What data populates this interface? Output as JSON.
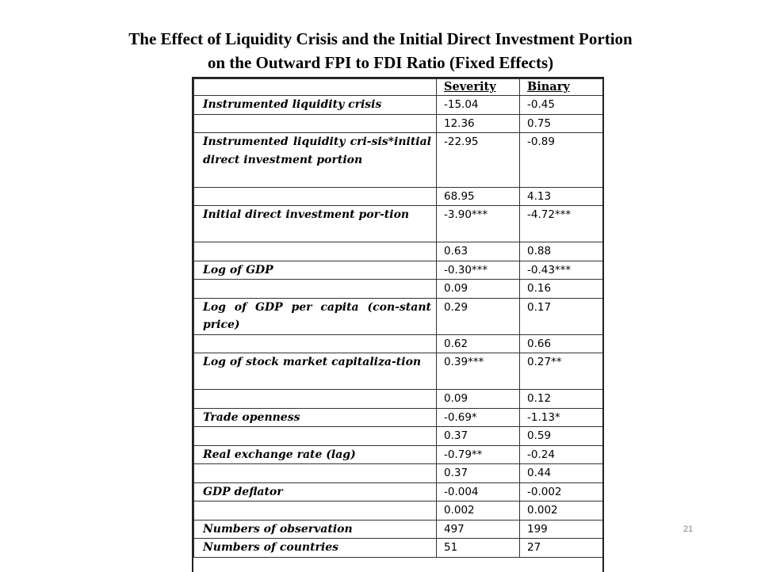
{
  "title": {
    "line1": "The Effect of Liquidity Crisis  and the Initial Direct Investment Portion",
    "line2": "on the Outward FPI to FDI Ratio (Fixed Effects)"
  },
  "table": {
    "headers": [
      "",
      "Severity",
      "Binary"
    ],
    "rows": [
      {
        "label": "Instrumented liquidity crisis",
        "severity": "-15.04",
        "binary": "-0.45",
        "lines": 1
      },
      {
        "label": "",
        "severity": "12.36",
        "binary": "0.75",
        "lines": 1
      },
      {
        "label": "Instrumented liquidity cri-sis*initial direct investment portion",
        "severity": "-22.95",
        "binary": "-0.89",
        "lines": 3
      },
      {
        "label": "",
        "severity": "68.95",
        "binary": "4.13",
        "lines": 1
      },
      {
        "label": "Initial direct investment por-tion",
        "severity": "-3.90***",
        "binary": "-4.72***",
        "lines": 2
      },
      {
        "label": "",
        "severity": "0.63",
        "binary": "0.88",
        "lines": 1
      },
      {
        "label": "Log of GDP",
        "severity": "-0.30***",
        "binary": "-0.43***",
        "lines": 1
      },
      {
        "label": "",
        "severity": "0.09",
        "binary": "0.16",
        "lines": 1
      },
      {
        "label": "Log of GDP per capita (con-stant price)",
        "severity": "0.29",
        "binary": "0.17",
        "lines": 2
      },
      {
        "label": "",
        "severity": "0.62",
        "binary": "0.66",
        "lines": 1
      },
      {
        "label": "Log of stock market capitaliza-tion",
        "severity": "0.39***",
        "binary": "0.27**",
        "lines": 2
      },
      {
        "label": "",
        "severity": "0.09",
        "binary": "0.12",
        "lines": 1
      },
      {
        "label": "Trade openness",
        "severity": "-0.69*",
        "binary": "-1.13*",
        "lines": 1
      },
      {
        "label": "",
        "severity": "0.37",
        "binary": "0.59",
        "lines": 1
      },
      {
        "label": "Real exchange rate (lag)",
        "severity": "-0.79**",
        "binary": "-0.24",
        "lines": 1
      },
      {
        "label": "",
        "severity": "0.37",
        "binary": "0.44",
        "lines": 1
      },
      {
        "label": "GDP deflator",
        "severity": "-0.004",
        "binary": "-0.002",
        "lines": 1
      },
      {
        "label": "",
        "severity": "0.002",
        "binary": "0.002",
        "lines": 1
      },
      {
        "label": "Numbers of observation",
        "severity": "497",
        "binary": "199",
        "lines": 1
      },
      {
        "label": "Numbers of countries",
        "severity": "51",
        "binary": "27",
        "lines": 1
      }
    ]
  },
  "page_number": "21"
}
